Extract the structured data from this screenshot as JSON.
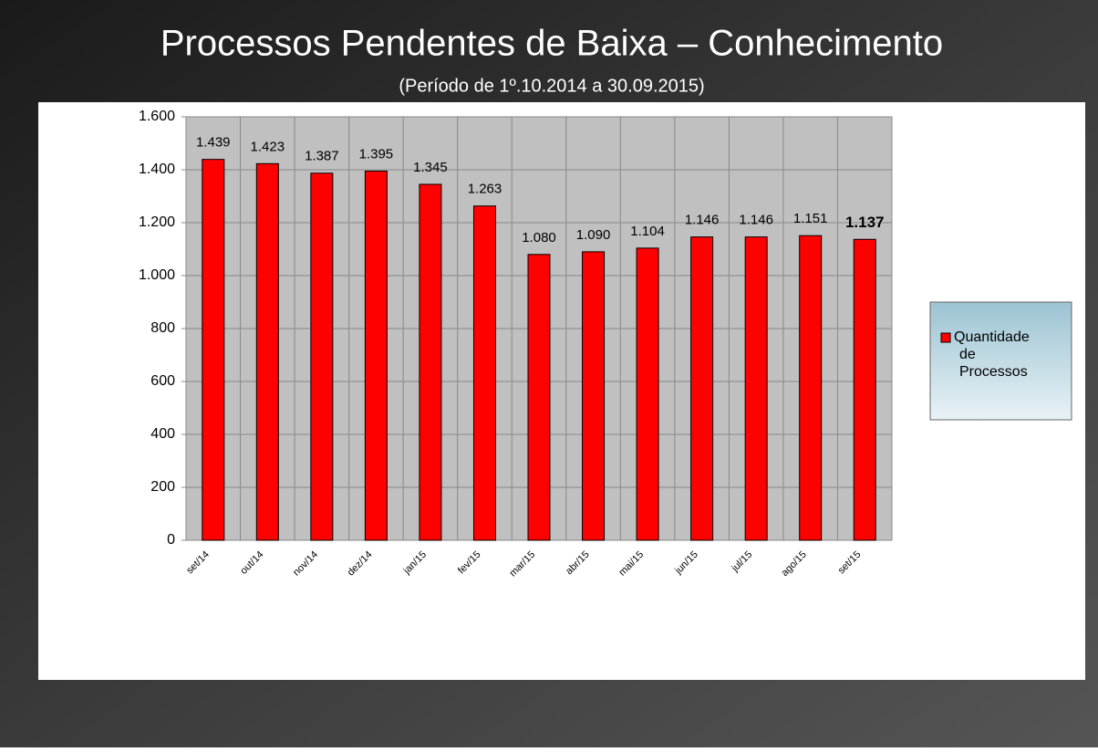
{
  "chart_data": {
    "type": "bar",
    "title": "Processos Pendentes de Baixa – Conhecimento",
    "subtitle": "(Período de 1º.10.2014  a  30.09.2015)",
    "categories": [
      "set/14",
      "out/14",
      "nov/14",
      "dez/14",
      "jan/15",
      "fev/15",
      "mar/15",
      "abr/15",
      "mai/15",
      "jun/15",
      "jul/15",
      "ago/15",
      "set/15"
    ],
    "series": [
      {
        "name": "Quantidade de Processos",
        "color": "#ff0000",
        "values": [
          1439,
          1423,
          1387,
          1395,
          1345,
          1263,
          1080,
          1090,
          1104,
          1146,
          1146,
          1151,
          1137
        ],
        "value_labels": [
          "1.439",
          "1.423",
          "1.387",
          "1.395",
          "1.345",
          "1.263",
          "1.080",
          "1.090",
          "1.104",
          "1.146",
          "1.146",
          "1.151",
          "1.137"
        ]
      }
    ],
    "ylim": [
      0,
      1600
    ],
    "yticks": [
      0,
      200,
      400,
      600,
      800,
      {
        "value": 1000,
        "label": "1.000"
      },
      {
        "value": 1200,
        "label": "1.200"
      },
      {
        "value": 1400,
        "label": "1.400"
      },
      {
        "value": 1600,
        "label": "1.600"
      }
    ],
    "grid": true,
    "legend": "right"
  }
}
